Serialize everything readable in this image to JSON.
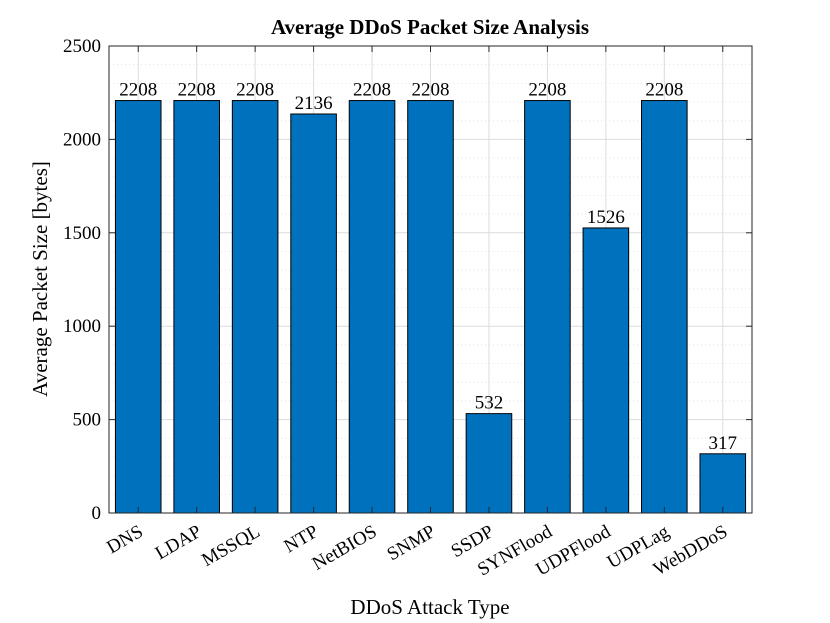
{
  "chart_data": {
    "type": "bar",
    "title": "Average DDoS Packet Size Analysis",
    "xlabel": "DDoS Attack Type",
    "ylabel": "Average Packet Size [bytes]",
    "categories": [
      "DNS",
      "LDAP",
      "MSSQL",
      "NTP",
      "NetBIOS",
      "SNMP",
      "SSDP",
      "SYNFlood",
      "UDPFlood",
      "UDPLag",
      "WebDDoS"
    ],
    "values": [
      2208,
      2208,
      2208,
      2136,
      2208,
      2208,
      532,
      2208,
      1526,
      2208,
      317
    ],
    "data_labels": [
      "2208",
      "2208",
      "2208",
      "2136",
      "2208",
      "2208",
      "532",
      "2208",
      "1526",
      "2208",
      "317"
    ],
    "ylim": [
      0,
      2500
    ],
    "yticks": [
      0,
      500,
      1000,
      1500,
      2000,
      2500
    ],
    "ytick_labels": [
      "0",
      "500",
      "1000",
      "1500",
      "2000",
      "2500"
    ],
    "minor_ytick_step": 100,
    "grid": true,
    "bar_color": "#0072BD",
    "bar_edge_color": "#000000",
    "grid_color": "#dcdcdc",
    "axis_color": "#262626"
  }
}
